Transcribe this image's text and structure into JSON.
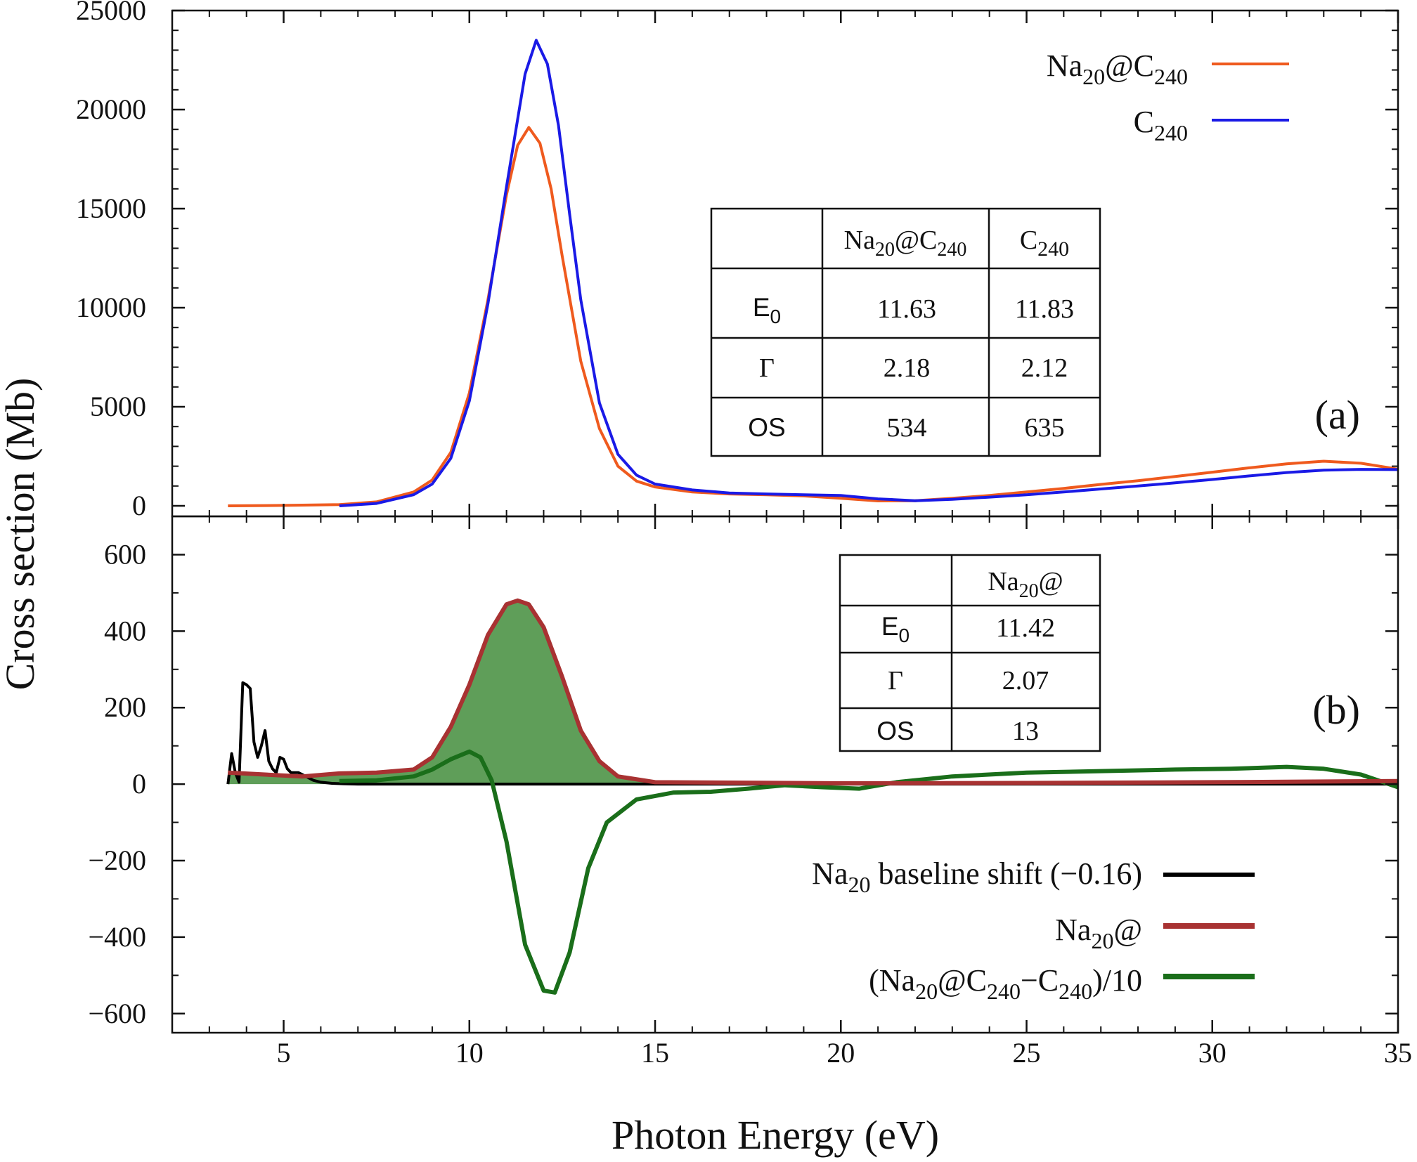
{
  "chart_data": [
    {
      "panel": "(a)",
      "type": "line",
      "ylabel": "Cross section (Mb)",
      "xlim": [
        2,
        35
      ],
      "ylim": [
        0,
        25000
      ],
      "yticks": [
        0,
        5000,
        10000,
        15000,
        20000,
        25000
      ],
      "ytick_labels": [
        "0",
        "5000",
        "10000",
        "15000",
        "20000",
        "25000"
      ],
      "legend_position": "top-right",
      "series": [
        {
          "name": "Na20@C240",
          "legend_parts": [
            "Na",
            "20",
            "@C",
            "240"
          ],
          "color": "#ef5a1e",
          "x": [
            3.5,
            5,
            6.5,
            7.5,
            8.5,
            9,
            9.5,
            10,
            10.5,
            11,
            11.3,
            11.6,
            11.9,
            12.2,
            12.5,
            13,
            13.5,
            14,
            14.5,
            15,
            16,
            17,
            18,
            19,
            20,
            21,
            22,
            23,
            24,
            25,
            26,
            27,
            28,
            29,
            30,
            31,
            32,
            33,
            34,
            35
          ],
          "y": [
            0,
            20,
            60,
            200,
            700,
            1300,
            2700,
            5700,
            10400,
            15700,
            18200,
            19100,
            18300,
            16000,
            12600,
            7300,
            3900,
            2000,
            1250,
            950,
            700,
            600,
            560,
            500,
            380,
            250,
            260,
            380,
            520,
            700,
            880,
            1080,
            1270,
            1480,
            1700,
            1920,
            2120,
            2250,
            2150,
            1850
          ]
        },
        {
          "name": "C240",
          "legend_parts": [
            "C",
            "240"
          ],
          "color": "#1a1ae6",
          "x": [
            6.5,
            7.5,
            8.5,
            9,
            9.5,
            10,
            10.5,
            11,
            11.5,
            11.8,
            12.1,
            12.4,
            12.7,
            13,
            13.5,
            14,
            14.5,
            15,
            16,
            17,
            18,
            19,
            20,
            21,
            22,
            23,
            24,
            25,
            26,
            27,
            28,
            29,
            30,
            31,
            32,
            33,
            34,
            35
          ],
          "y": [
            0,
            120,
            560,
            1100,
            2400,
            5300,
            10200,
            16100,
            21800,
            23500,
            22300,
            19200,
            14700,
            10400,
            5200,
            2600,
            1550,
            1100,
            800,
            650,
            600,
            560,
            520,
            350,
            260,
            330,
            440,
            560,
            700,
            850,
            1000,
            1160,
            1330,
            1510,
            1680,
            1800,
            1840,
            1830
          ]
        }
      ],
      "table": {
        "headers": [
          "",
          "Na20@C240",
          "C240"
        ],
        "rows": [
          {
            "label": "E0",
            "values": [
              "11.63",
              "11.83"
            ]
          },
          {
            "label": "Γ",
            "values": [
              "2.18",
              "2.12"
            ]
          },
          {
            "label": "OS",
            "values": [
              "534",
              "635"
            ]
          }
        ]
      }
    },
    {
      "panel": "(b)",
      "type": "line",
      "xlabel": "Photon Energy (eV)",
      "xlim": [
        2,
        35
      ],
      "ylim": [
        -650,
        700
      ],
      "xticks": [
        5,
        10,
        15,
        20,
        25,
        30,
        35
      ],
      "xtick_labels": [
        "5",
        "10",
        "15",
        "20",
        "25",
        "30",
        "35"
      ],
      "yticks": [
        -600,
        -400,
        -200,
        0,
        200,
        400,
        600
      ],
      "ytick_labels": [
        "−600",
        "−400",
        "−200",
        "0",
        "200",
        "400",
        "600"
      ],
      "legend_position": "bottom-right",
      "series": [
        {
          "name": "Na20 baseline shift (−0.16)",
          "legend_parts": [
            "Na",
            "20",
            " baseline shift (−0.16)"
          ],
          "color": "#000000",
          "x": [
            3.5,
            3.6,
            3.7,
            3.8,
            3.9,
            4.0,
            4.1,
            4.2,
            4.3,
            4.4,
            4.5,
            4.6,
            4.7,
            4.8,
            4.9,
            5.0,
            5.1,
            5.2,
            5.4,
            5.6,
            5.8,
            6.0,
            6.3,
            6.6,
            7,
            35
          ],
          "y": [
            0,
            80,
            30,
            5,
            265,
            260,
            250,
            110,
            70,
            100,
            140,
            60,
            40,
            30,
            70,
            65,
            40,
            30,
            30,
            20,
            10,
            5,
            2,
            1,
            0,
            0
          ]
        },
        {
          "name": "Na20@",
          "legend_parts": [
            "Na",
            "20",
            "@"
          ],
          "color": "#a83232",
          "fill": "#5f9e59",
          "x": [
            3.5,
            4.5,
            5.5,
            6.5,
            7.5,
            8.5,
            9,
            9.5,
            10,
            10.5,
            11,
            11.3,
            11.6,
            12,
            12.5,
            13,
            13.5,
            14,
            15,
            20,
            25,
            30,
            35
          ],
          "y": [
            30,
            25,
            20,
            28,
            30,
            38,
            70,
            150,
            260,
            390,
            470,
            480,
            470,
            410,
            280,
            140,
            60,
            20,
            5,
            2,
            3,
            5,
            8
          ]
        },
        {
          "name": "(Na20@C240−C240)/10",
          "legend_parts": [
            "(Na",
            "20",
            "@C",
            "240",
            "−C",
            "240",
            ")/10"
          ],
          "color": "#1a6e1a",
          "x": [
            6.5,
            7.5,
            8.5,
            9,
            9.5,
            10,
            10.3,
            10.6,
            11,
            11.5,
            12,
            12.3,
            12.7,
            13.2,
            13.7,
            14.5,
            15.5,
            16.5,
            17.5,
            18.5,
            19.5,
            20.5,
            21.5,
            23,
            25,
            27,
            29,
            30.5,
            32,
            33,
            34,
            35
          ],
          "y": [
            8,
            10,
            20,
            38,
            65,
            85,
            70,
            10,
            -150,
            -420,
            -540,
            -545,
            -440,
            -220,
            -100,
            -40,
            -22,
            -20,
            -12,
            -3,
            -8,
            -12,
            5,
            20,
            30,
            34,
            38,
            40,
            45,
            40,
            25,
            -8
          ]
        }
      ],
      "table": {
        "headers": [
          "",
          "Na20@"
        ],
        "rows": [
          {
            "label": "E0",
            "values": [
              "11.42"
            ]
          },
          {
            "label": "Γ",
            "values": [
              "2.07"
            ]
          },
          {
            "label": "OS",
            "values": [
              "13"
            ]
          }
        ]
      }
    }
  ]
}
